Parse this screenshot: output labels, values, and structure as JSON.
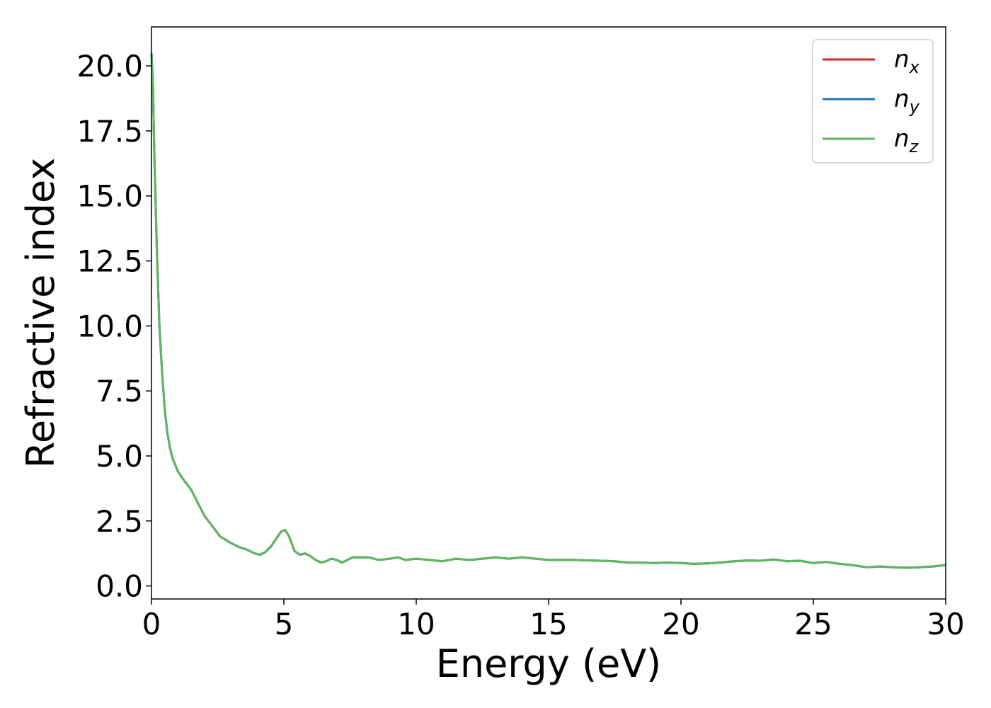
{
  "chart_data": {
    "type": "line",
    "xlabel": "Energy (eV)",
    "ylabel": "Refractive index",
    "xlim": [
      0,
      30
    ],
    "ylim": [
      -0.5,
      21.5
    ],
    "xticks": [
      0,
      5,
      10,
      15,
      20,
      25,
      30
    ],
    "xtick_labels": [
      "0",
      "5",
      "10",
      "15",
      "20",
      "25",
      "30"
    ],
    "yticks": [
      0,
      2.5,
      5,
      7.5,
      10,
      12.5,
      15,
      17.5,
      20
    ],
    "ytick_labels": [
      "0.0",
      "2.5",
      "5.0",
      "7.5",
      "10.0",
      "12.5",
      "15.0",
      "17.5",
      "20.0"
    ],
    "grid": false,
    "legend": "top-right",
    "x": [
      0.0,
      0.05,
      0.1,
      0.2,
      0.3,
      0.4,
      0.5,
      0.6,
      0.7,
      0.8,
      1.0,
      1.2,
      1.5,
      1.8,
      2.0,
      2.3,
      2.6,
      3.0,
      3.3,
      3.6,
      3.9,
      4.1,
      4.3,
      4.5,
      4.7,
      4.9,
      5.05,
      5.2,
      5.4,
      5.6,
      5.8,
      6.0,
      6.2,
      6.4,
      6.6,
      6.8,
      7.0,
      7.2,
      7.4,
      7.6,
      7.8,
      8.2,
      8.6,
      9.0,
      9.3,
      9.6,
      10.0,
      10.5,
      11.0,
      11.5,
      12.0,
      12.5,
      13.0,
      13.5,
      14.0,
      14.5,
      15.0,
      15.5,
      16.0,
      16.5,
      17.0,
      17.5,
      18.0,
      18.5,
      19.0,
      19.5,
      20.0,
      20.5,
      21.0,
      21.5,
      22.0,
      22.5,
      23.0,
      23.5,
      24.0,
      24.5,
      25.0,
      25.5,
      26.0,
      26.5,
      27.0,
      27.5,
      28.0,
      28.5,
      29.0,
      29.5,
      30.0
    ],
    "series": [
      {
        "name_base": "n",
        "name_sub": "x",
        "color": "#d62728",
        "values": [
          20.5,
          19.5,
          17.0,
          13.0,
          10.0,
          8.2,
          6.8,
          5.9,
          5.3,
          4.9,
          4.4,
          4.1,
          3.7,
          3.1,
          2.7,
          2.3,
          1.9,
          1.65,
          1.5,
          1.4,
          1.25,
          1.2,
          1.3,
          1.5,
          1.8,
          2.1,
          2.15,
          1.9,
          1.35,
          1.2,
          1.25,
          1.15,
          1.0,
          0.9,
          0.95,
          1.05,
          1.0,
          0.9,
          1.0,
          1.1,
          1.1,
          1.1,
          1.0,
          1.05,
          1.1,
          1.0,
          1.05,
          1.0,
          0.95,
          1.05,
          1.0,
          1.05,
          1.1,
          1.05,
          1.1,
          1.05,
          1.0,
          1.0,
          1.0,
          0.98,
          0.97,
          0.95,
          0.9,
          0.9,
          0.88,
          0.9,
          0.88,
          0.85,
          0.87,
          0.9,
          0.95,
          0.98,
          0.97,
          1.02,
          0.95,
          0.97,
          0.88,
          0.92,
          0.85,
          0.8,
          0.72,
          0.75,
          0.72,
          0.7,
          0.72,
          0.75,
          0.8
        ]
      },
      {
        "name_base": "n",
        "name_sub": "y",
        "color": "#1f77b4",
        "values": [
          20.5,
          19.5,
          17.0,
          13.0,
          10.0,
          8.2,
          6.8,
          5.9,
          5.3,
          4.9,
          4.4,
          4.1,
          3.7,
          3.1,
          2.7,
          2.3,
          1.9,
          1.65,
          1.5,
          1.4,
          1.25,
          1.2,
          1.3,
          1.5,
          1.8,
          2.1,
          2.15,
          1.9,
          1.35,
          1.2,
          1.25,
          1.15,
          1.0,
          0.9,
          0.95,
          1.05,
          1.0,
          0.9,
          1.0,
          1.1,
          1.1,
          1.1,
          1.0,
          1.05,
          1.1,
          1.0,
          1.05,
          1.0,
          0.95,
          1.05,
          1.0,
          1.05,
          1.1,
          1.05,
          1.1,
          1.05,
          1.0,
          1.0,
          1.0,
          0.98,
          0.97,
          0.95,
          0.9,
          0.9,
          0.88,
          0.9,
          0.88,
          0.85,
          0.87,
          0.9,
          0.95,
          0.98,
          0.97,
          1.02,
          0.95,
          0.97,
          0.88,
          0.92,
          0.85,
          0.8,
          0.72,
          0.75,
          0.72,
          0.7,
          0.72,
          0.75,
          0.8
        ]
      },
      {
        "name_base": "n",
        "name_sub": "z",
        "color": "#5cb85c",
        "values": [
          20.5,
          19.5,
          17.0,
          13.0,
          10.0,
          8.2,
          6.8,
          5.9,
          5.3,
          4.9,
          4.4,
          4.1,
          3.7,
          3.1,
          2.7,
          2.3,
          1.9,
          1.65,
          1.5,
          1.4,
          1.25,
          1.2,
          1.3,
          1.5,
          1.8,
          2.1,
          2.15,
          1.9,
          1.35,
          1.2,
          1.25,
          1.15,
          1.0,
          0.9,
          0.95,
          1.05,
          1.0,
          0.9,
          1.0,
          1.1,
          1.1,
          1.1,
          1.0,
          1.05,
          1.1,
          1.0,
          1.05,
          1.0,
          0.95,
          1.05,
          1.0,
          1.05,
          1.1,
          1.05,
          1.1,
          1.05,
          1.0,
          1.0,
          1.0,
          0.98,
          0.97,
          0.95,
          0.9,
          0.9,
          0.88,
          0.9,
          0.88,
          0.85,
          0.87,
          0.9,
          0.95,
          0.98,
          0.97,
          1.02,
          0.95,
          0.97,
          0.88,
          0.92,
          0.85,
          0.8,
          0.72,
          0.75,
          0.72,
          0.7,
          0.72,
          0.75,
          0.8
        ]
      }
    ]
  }
}
